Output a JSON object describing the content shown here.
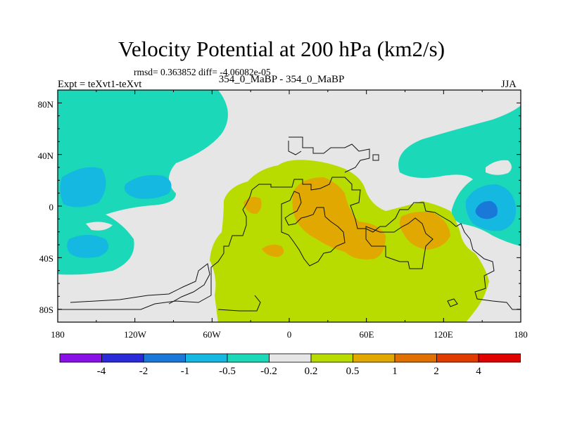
{
  "header": {
    "title": "Velocity Potential at 200 hPa (km2/s)",
    "stats": "rmsd= 0.363852 diff= -4.06082e-05",
    "experiment": "Expt = teXvt1-teXvt",
    "cases": "354_0_MaBP - 354_0_MaBP",
    "season": "JJA"
  },
  "map": {
    "x_ticks": [
      "180",
      "120W",
      "60W",
      "0",
      "60E",
      "120E",
      "180"
    ],
    "y_ticks": [
      "80N",
      "40N",
      "0",
      "40S",
      "80S"
    ]
  },
  "colorbar": {
    "labels": [
      "-4",
      "-2",
      "-1",
      "-0.5",
      "-0.2",
      "0.2",
      "0.5",
      "1",
      "2",
      "4"
    ],
    "colors": [
      "#8a10e8",
      "#2a2ad8",
      "#1a78d8",
      "#14b8e0",
      "#1ad8b8",
      "#e6e6e6",
      "#b8dc00",
      "#e0a800",
      "#e07000",
      "#e03c00",
      "#e00000"
    ]
  },
  "chart_data": {
    "type": "contour-fill",
    "variable": "Velocity Potential at 200 hPa (km2/s)",
    "lon_range": [
      -180,
      180
    ],
    "lat_range": [
      -90,
      90
    ],
    "levels": [
      -4,
      -2,
      -1,
      -0.5,
      -0.2,
      0.2,
      0.5,
      1,
      2,
      4
    ]
  }
}
